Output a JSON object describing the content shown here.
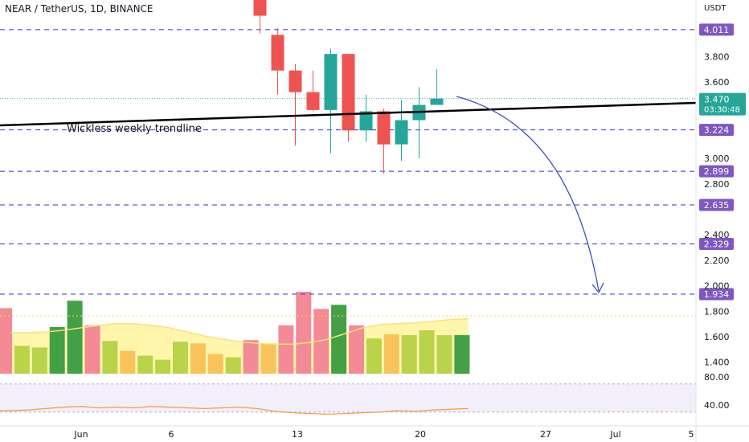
{
  "header": {
    "title": "NEAR / TetherUS, 1D, BINANCE"
  },
  "chart_data": {
    "type": "candlestick",
    "currency_label": "USDT",
    "price_axis": {
      "ticks": [
        3.8,
        3.6,
        3.0,
        2.8,
        2.4,
        2.2,
        2.0,
        1.8,
        1.6,
        1.4
      ]
    },
    "time_axis": {
      "labels": [
        "Jun",
        "6",
        "13",
        "20",
        "27",
        "Jul",
        "5"
      ]
    },
    "candles": [
      {
        "open": 4.25,
        "high": 4.3,
        "low": 3.98,
        "close": 4.12
      },
      {
        "open": 3.97,
        "high": 4.02,
        "low": 3.5,
        "close": 3.69
      },
      {
        "open": 3.69,
        "high": 3.74,
        "low": 3.1,
        "close": 3.52
      },
      {
        "open": 3.52,
        "high": 3.69,
        "low": 3.37,
        "close": 3.38
      },
      {
        "open": 3.38,
        "high": 3.86,
        "low": 3.04,
        "close": 3.82
      },
      {
        "open": 3.82,
        "high": 3.82,
        "low": 3.13,
        "close": 3.22
      },
      {
        "open": 3.22,
        "high": 3.5,
        "low": 3.13,
        "close": 3.37
      },
      {
        "open": 3.37,
        "high": 3.39,
        "low": 2.88,
        "close": 3.11
      },
      {
        "open": 3.11,
        "high": 3.46,
        "low": 2.98,
        "close": 3.3
      },
      {
        "open": 3.3,
        "high": 3.56,
        "low": 3.0,
        "close": 3.42
      },
      {
        "open": 3.42,
        "high": 3.7,
        "low": 3.42,
        "close": 3.47
      }
    ],
    "horizontal_levels": [
      {
        "value": 4.011,
        "label": "4.011"
      },
      {
        "value": 3.224,
        "label": "3.224"
      },
      {
        "value": 2.899,
        "label": "2.899"
      },
      {
        "value": 2.635,
        "label": "2.635"
      },
      {
        "value": 2.329,
        "label": "2.329"
      },
      {
        "value": 1.934,
        "label": "1.934"
      }
    ],
    "last_price": {
      "value": 3.47,
      "label": "3.470",
      "countdown": "03:30:48"
    },
    "trendline": {
      "label": "Wickless weekly trendline"
    },
    "volume": {
      "bars": [
        {
          "color": "#f38a96",
          "value": 0.8
        },
        {
          "color": "#b9d34a",
          "value": 0.34
        },
        {
          "color": "#b9d34a",
          "value": 0.32
        },
        {
          "color": "#43a047",
          "value": 0.57
        },
        {
          "color": "#43a047",
          "value": 0.89
        },
        {
          "color": "#f38a96",
          "value": 0.59
        },
        {
          "color": "#b9d34a",
          "value": 0.4
        },
        {
          "color": "#f9c35b",
          "value": 0.28
        },
        {
          "color": "#b9d34a",
          "value": 0.22
        },
        {
          "color": "#b9d34a",
          "value": 0.17
        },
        {
          "color": "#b9d34a",
          "value": 0.39
        },
        {
          "color": "#f9c35b",
          "value": 0.37
        },
        {
          "color": "#f9c35b",
          "value": 0.24
        },
        {
          "color": "#b9d34a",
          "value": 0.2
        },
        {
          "color": "#f38a96",
          "value": 0.41
        },
        {
          "color": "#f9c35b",
          "value": 0.37
        },
        {
          "color": "#f38a96",
          "value": 0.59
        },
        {
          "color": "#f38a96",
          "value": 1.0
        },
        {
          "color": "#f38a96",
          "value": 0.79
        },
        {
          "color": "#43a047",
          "value": 0.84
        },
        {
          "color": "#f38a96",
          "value": 0.59
        },
        {
          "color": "#b9d34a",
          "value": 0.43
        },
        {
          "color": "#f9c35b",
          "value": 0.48
        },
        {
          "color": "#b9d34a",
          "value": 0.47
        },
        {
          "color": "#b9d34a",
          "value": 0.53
        },
        {
          "color": "#b9d34a",
          "value": 0.47
        },
        {
          "color": "#43a047",
          "value": 0.47
        }
      ],
      "ma_values": [
        0.5,
        0.5,
        0.51,
        0.53,
        0.56,
        0.59,
        0.61,
        0.61,
        0.59,
        0.56,
        0.51,
        0.46,
        0.42,
        0.39,
        0.37,
        0.36,
        0.36,
        0.38,
        0.42,
        0.49,
        0.56,
        0.6,
        0.61,
        0.62,
        0.64,
        0.66,
        0.67
      ]
    },
    "oscillator": {
      "ticks": [
        80.0,
        40.0
      ],
      "tick_labels": [
        "80.00",
        "40.00"
      ],
      "values": [
        32,
        33,
        35,
        37,
        38,
        36,
        37,
        36,
        38,
        37,
        36,
        35,
        36,
        37,
        35,
        31,
        29,
        28,
        27,
        28,
        29,
        30,
        32,
        31,
        33,
        34,
        35
      ]
    },
    "colors": {
      "up": "#26a69a",
      "down": "#ef5350",
      "level_line": "#3b2fc9",
      "level_badge": "#7e57c2",
      "trendline": "#000000",
      "arrow": "#3f51b5",
      "last_price_badge": "#26a69a"
    }
  }
}
